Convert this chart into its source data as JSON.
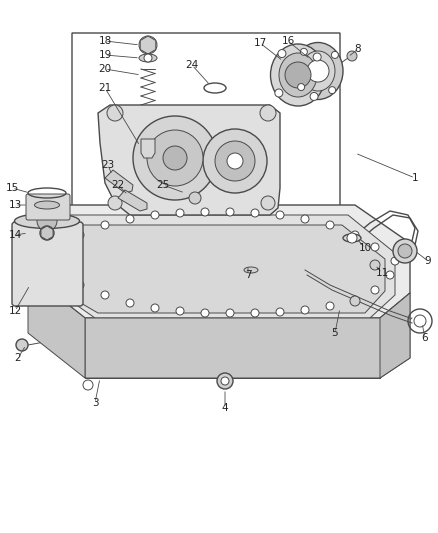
{
  "bg_color": "#ffffff",
  "line_color": "#4a4a4a",
  "figsize": [
    4.38,
    5.33
  ],
  "dpi": 100
}
